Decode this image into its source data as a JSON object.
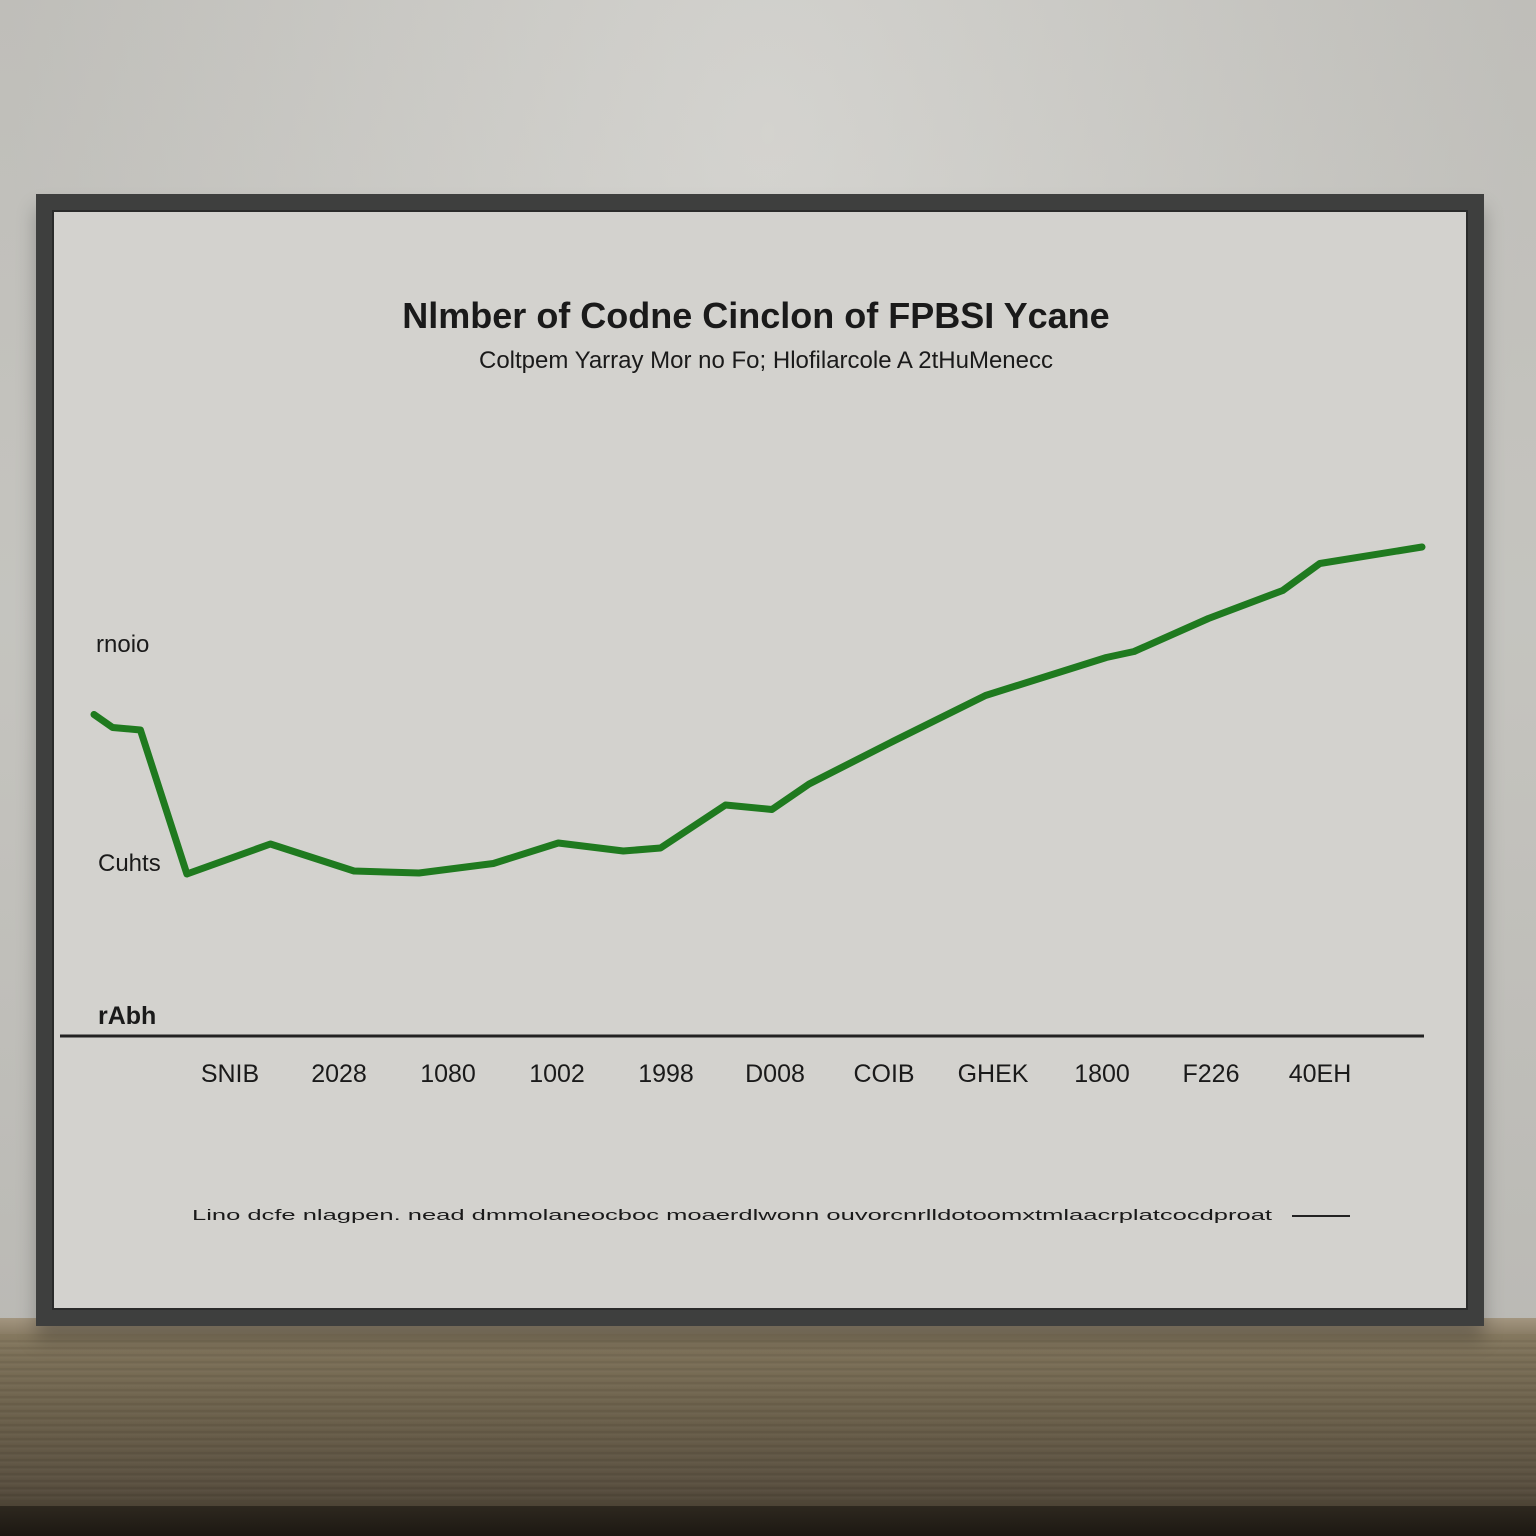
{
  "colors": {
    "line": "#1f7a1f",
    "axis": "#222222",
    "text": "#1a1a1a",
    "frame": "#3e3f3e",
    "paper": "#d3d2ce"
  },
  "chart_data": {
    "type": "line",
    "title": "Nlmber of Codne Cinclon of FPBSI Ycane",
    "subtitle": "Coltpem Yarray Mor no Fo; Hlofilarcole A 2tHuMenecc",
    "footnote": "Lino dcfe nlagpen. nead dmmolaneocboc moaerdlwonn ouvorcnrlldotoomxtmlaacrplatcocdproat",
    "xlabel": "",
    "ylabel": "",
    "y_tick_labels": [
      "rnoio",
      "Cuhts",
      "rAbh"
    ],
    "categories": [
      "SNIB",
      "2028",
      "1080",
      "1002",
      "1998",
      "D008",
      "COIB",
      "GHEK",
      "1800",
      "F226",
      "40EH"
    ],
    "series": [
      {
        "values": [
          [
            0.0,
            64.3
          ],
          [
            0.2,
            61.7
          ],
          [
            0.5,
            61.2
          ],
          [
            1.0,
            32.4
          ],
          [
            1.9,
            38.4
          ],
          [
            2.8,
            33.0
          ],
          [
            3.5,
            32.6
          ],
          [
            4.3,
            34.5
          ],
          [
            5.0,
            38.6
          ],
          [
            5.7,
            37.0
          ],
          [
            6.1,
            37.6
          ],
          [
            6.8,
            46.2
          ],
          [
            7.3,
            45.3
          ],
          [
            7.7,
            50.4
          ],
          [
            8.6,
            58.9
          ],
          [
            9.6,
            68.1
          ],
          [
            10.9,
            75.7
          ],
          [
            11.2,
            76.9
          ],
          [
            12.0,
            83.5
          ],
          [
            12.8,
            89.1
          ],
          [
            13.2,
            94.5
          ],
          [
            14.3,
            97.8
          ]
        ]
      }
    ],
    "xlim": [
      0,
      14.3
    ],
    "ylim": [
      0,
      140
    ],
    "grid": false,
    "legend": "none"
  }
}
